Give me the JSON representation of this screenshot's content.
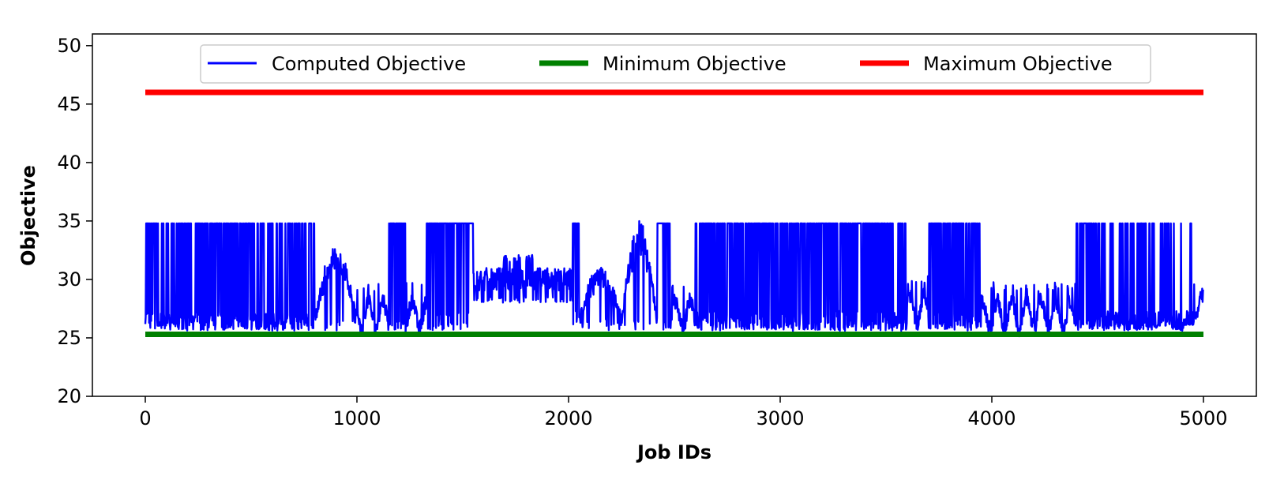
{
  "chart_data": {
    "type": "line",
    "title": "",
    "xlabel": "Job IDs",
    "ylabel": "Objective",
    "xlim": [
      -250,
      5250
    ],
    "ylim": [
      20,
      51
    ],
    "xticks": [
      0,
      1000,
      2000,
      3000,
      4000,
      5000
    ],
    "xtick_labels": [
      "0",
      "1000",
      "2000",
      "3000",
      "4000",
      "5000"
    ],
    "yticks": [
      20,
      25,
      30,
      35,
      40,
      45,
      50
    ],
    "ytick_labels": [
      "20",
      "25",
      "30",
      "35",
      "40",
      "45",
      "50"
    ],
    "grid": false,
    "legend_position": "top-center",
    "series": [
      {
        "name": "Computed Objective",
        "color": "#0000ff",
        "style": "thin",
        "x_range": [
          0,
          5000
        ],
        "baseline": 26.5,
        "spike_value": 34.8,
        "segments": [
          {
            "x": [
              0,
              800
            ],
            "mode": "spiky",
            "base": 26.5,
            "spike_density": 0.45
          },
          {
            "x": [
              800,
              1000
            ],
            "mode": "hump",
            "peak": 32.0,
            "base": 26.5
          },
          {
            "x": [
              1000,
              1150
            ],
            "mode": "wavy",
            "base": 27.0
          },
          {
            "x": [
              1150,
              1230
            ],
            "mode": "spiky",
            "base": 26.5,
            "spike_density": 0.9
          },
          {
            "x": [
              1230,
              1330
            ],
            "mode": "wavy",
            "base": 27.0
          },
          {
            "x": [
              1330,
              1550
            ],
            "mode": "spiky",
            "base": 26.5,
            "spike_density": 0.85
          },
          {
            "x": [
              1550,
              2020
            ],
            "mode": "plateau",
            "level": 30.0
          },
          {
            "x": [
              2020,
              2050
            ],
            "mode": "spiky",
            "base": 27.0,
            "spike_density": 0.9
          },
          {
            "x": [
              2050,
              2250
            ],
            "mode": "hump",
            "peak": 30.5,
            "base": 26.5
          },
          {
            "x": [
              2250,
              2420
            ],
            "mode": "hump",
            "peak": 34.0,
            "base": 26.5
          },
          {
            "x": [
              2420,
              2480
            ],
            "mode": "spiky",
            "base": 26.5,
            "spike_density": 0.9
          },
          {
            "x": [
              2480,
              2600
            ],
            "mode": "wavy",
            "base": 27.0
          },
          {
            "x": [
              2600,
              3600
            ],
            "mode": "spiky",
            "base": 26.5,
            "spike_density": 0.55
          },
          {
            "x": [
              3600,
              3700
            ],
            "mode": "wavy",
            "base": 27.5
          },
          {
            "x": [
              3700,
              3950
            ],
            "mode": "spiky",
            "base": 26.5,
            "spike_density": 0.6
          },
          {
            "x": [
              3950,
              4400
            ],
            "mode": "wavy",
            "base": 27.0
          },
          {
            "x": [
              4400,
              4480
            ],
            "mode": "spiky",
            "base": 26.5,
            "spike_density": 0.7
          },
          {
            "x": [
              4480,
              4950
            ],
            "mode": "spiky",
            "base": 26.5,
            "spike_density": 0.3
          },
          {
            "x": [
              4950,
              5000
            ],
            "mode": "wavy",
            "base": 27.5
          }
        ]
      },
      {
        "name": "Minimum Objective",
        "color": "#008000",
        "style": "thick",
        "x": [
          0,
          5000
        ],
        "values": [
          25.3,
          25.3
        ]
      },
      {
        "name": "Maximum Objective",
        "color": "#ff0000",
        "style": "thick",
        "x": [
          0,
          5000
        ],
        "values": [
          46.0,
          46.0
        ]
      }
    ]
  }
}
